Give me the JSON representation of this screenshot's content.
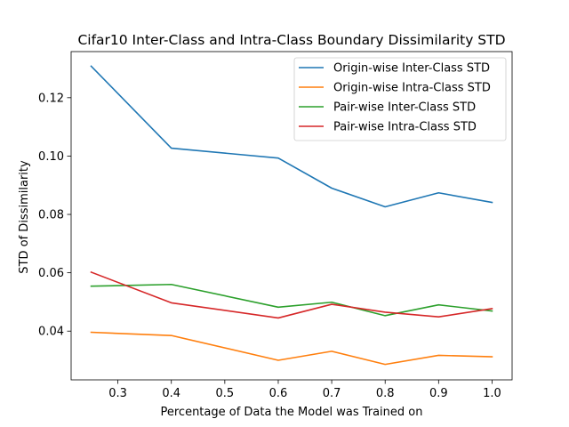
{
  "chart_data": {
    "type": "line",
    "title": "Cifar10 Inter-Class and Intra-Class Boundary Dissimilarity STD",
    "xlabel": "Percentage of Data the Model was Trained on",
    "ylabel": "STD of Dissimilarity",
    "x": [
      0.25,
      0.4,
      0.6,
      0.7,
      0.8,
      0.9,
      1.0
    ],
    "xlim": [
      0.2125,
      1.0375
    ],
    "ylim": [
      0.0233,
      0.1358
    ],
    "xticks": [
      0.3,
      0.4,
      0.5,
      0.6,
      0.7,
      0.8,
      0.9,
      1.0
    ],
    "xtick_labels": [
      "0.3",
      "0.4",
      "0.5",
      "0.6",
      "0.7",
      "0.8",
      "0.9",
      "1.0"
    ],
    "yticks": [
      0.04,
      0.06,
      0.08,
      0.1,
      0.12
    ],
    "ytick_labels": [
      "0.04",
      "0.06",
      "0.08",
      "0.10",
      "0.12"
    ],
    "grid": false,
    "legend_position": "top-right",
    "series": [
      {
        "name": "Origin-wise Inter-Class STD",
        "color": "#1f77b4",
        "values": [
          0.1308,
          0.1027,
          0.0993,
          0.089,
          0.0826,
          0.0874,
          0.0841
        ]
      },
      {
        "name": "Origin-wise Intra-Class STD",
        "color": "#ff7f0e",
        "values": [
          0.0396,
          0.0385,
          0.03,
          0.0331,
          0.0286,
          0.0317,
          0.0312
        ]
      },
      {
        "name": "Pair-wise Inter-Class STD",
        "color": "#2ca02c",
        "values": [
          0.0554,
          0.056,
          0.0482,
          0.0499,
          0.0453,
          0.049,
          0.0469
        ]
      },
      {
        "name": "Pair-wise Intra-Class STD",
        "color": "#d62728",
        "values": [
          0.0602,
          0.0497,
          0.0445,
          0.0492,
          0.0465,
          0.0449,
          0.0477
        ]
      }
    ]
  }
}
